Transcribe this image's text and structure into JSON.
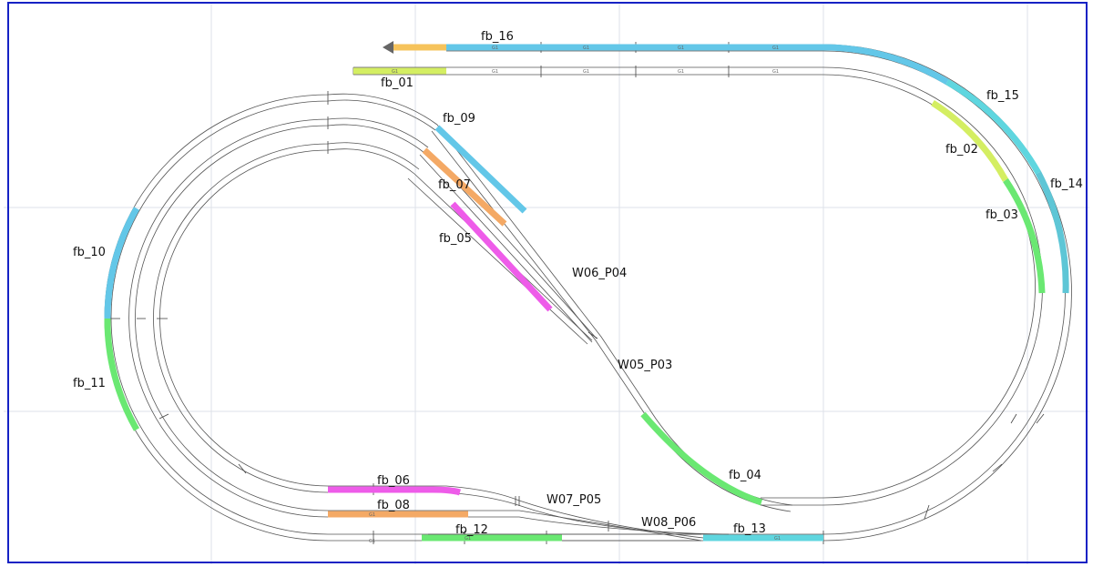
{
  "colors": {
    "blue": "#63c7e8",
    "cyan": "#5fd6df",
    "orange": "#f4a965",
    "magenta": "#ee5ce9",
    "green": "#6ae872",
    "lime": "#d4ee62",
    "gold": "#f6c35b",
    "rail": "#555555",
    "frame": "#1622c4",
    "grid": "#dde2e8"
  },
  "feedback_labels": {
    "fb_01": "fb_01",
    "fb_02": "fb_02",
    "fb_03": "fb_03",
    "fb_04": "fb_04",
    "fb_05": "fb_05",
    "fb_06": "fb_06",
    "fb_07": "fb_07",
    "fb_08": "fb_08",
    "fb_09": "fb_09",
    "fb_10": "fb_10",
    "fb_11": "fb_11",
    "fb_12": "fb_12",
    "fb_13": "fb_13",
    "fb_14": "fb_14",
    "fb_15": "fb_15",
    "fb_16": "fb_16"
  },
  "switch_labels": {
    "W05_P03": "W05_P03",
    "W06_P04": "W06_P04",
    "W07_P05": "W07_P05",
    "W08_P06": "W08_P06"
  },
  "track_piece_label": "G1",
  "direction_icon": "arrow-left-icon"
}
